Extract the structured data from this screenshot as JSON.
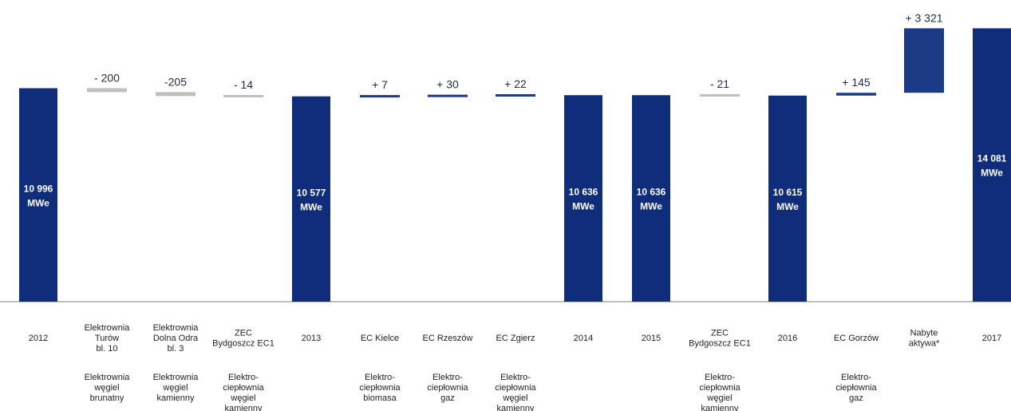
{
  "chart_data": {
    "type": "bar",
    "subtype": "waterfall",
    "title": "",
    "xlabel": "",
    "ylabel": "",
    "unit": "MWe",
    "ylim": [
      0,
      14100
    ],
    "grid": false,
    "legend": "none",
    "colors": {
      "total": "#0f2d7a",
      "increase": "#1c3a85",
      "decrease": "#bfbfbf",
      "axis": "#7f7f7f"
    },
    "bars": [
      {
        "category": [
          "2012"
        ],
        "kind": "total",
        "value": 10996,
        "label": [
          "10 996",
          "MWe"
        ],
        "type": []
      },
      {
        "category": [
          "Elektrownia",
          "Turów",
          "bl. 10"
        ],
        "kind": "delta",
        "value": -200,
        "label": [
          "- 200"
        ],
        "type": [
          "Elektrownia",
          "węgiel",
          "brunatny"
        ]
      },
      {
        "category": [
          "Elektrownia",
          "Dolna Odra",
          "bl. 3"
        ],
        "kind": "delta",
        "value": -205,
        "label": [
          "-205"
        ],
        "type": [
          "Elektrownia",
          "węgiel",
          "kamienny"
        ]
      },
      {
        "category": [
          "ZEC",
          "Bydgoszcz EC1"
        ],
        "kind": "delta",
        "value": -14,
        "label": [
          "- 14"
        ],
        "type": [
          "Elektro-",
          "ciepłownia",
          "węgiel",
          "kamienny"
        ]
      },
      {
        "category": [
          "2013"
        ],
        "kind": "total",
        "value": 10577,
        "label": [
          "10 577",
          "MWe"
        ],
        "type": []
      },
      {
        "category": [
          "EC Kielce"
        ],
        "kind": "delta",
        "value": 7,
        "label": [
          "+ 7"
        ],
        "type": [
          "Elektro-",
          "ciepłownia",
          "biomasa"
        ]
      },
      {
        "category": [
          "EC Rzeszów"
        ],
        "kind": "delta",
        "value": 30,
        "label": [
          "+ 30"
        ],
        "type": [
          "Elektro-",
          "ciepłownia",
          "gaz"
        ]
      },
      {
        "category": [
          "EC Zgierz"
        ],
        "kind": "delta",
        "value": 22,
        "label": [
          "+ 22"
        ],
        "type": [
          "Elektro-",
          "ciepłownia",
          "węgiel",
          "kamienny"
        ]
      },
      {
        "category": [
          "2014"
        ],
        "kind": "total",
        "value": 10636,
        "label": [
          "10 636",
          "MWe"
        ],
        "type": []
      },
      {
        "category": [
          "2015"
        ],
        "kind": "total",
        "value": 10636,
        "label": [
          "10 636",
          "MWe"
        ],
        "type": []
      },
      {
        "category": [
          "ZEC",
          "Bydgoszcz EC1"
        ],
        "kind": "delta",
        "value": -21,
        "label": [
          "- 21"
        ],
        "type": [
          "Elektro-",
          "ciepłownia",
          "węgiel",
          "kamienny"
        ]
      },
      {
        "category": [
          "2016"
        ],
        "kind": "total",
        "value": 10615,
        "label": [
          "10 615",
          "MWe"
        ],
        "type": []
      },
      {
        "category": [
          "EC Gorzów"
        ],
        "kind": "delta",
        "value": 145,
        "label": [
          "+ 145"
        ],
        "type": [
          "Elektro-",
          "ciepłownia",
          "gaz"
        ]
      },
      {
        "category": [
          "Nabyte",
          "aktywa*"
        ],
        "kind": "delta",
        "value": 3321,
        "label": [
          "+ 3 321"
        ],
        "type": []
      },
      {
        "category": [
          "2017"
        ],
        "kind": "total",
        "value": 14081,
        "label": [
          "14 081",
          "MWe"
        ],
        "type": []
      }
    ]
  }
}
